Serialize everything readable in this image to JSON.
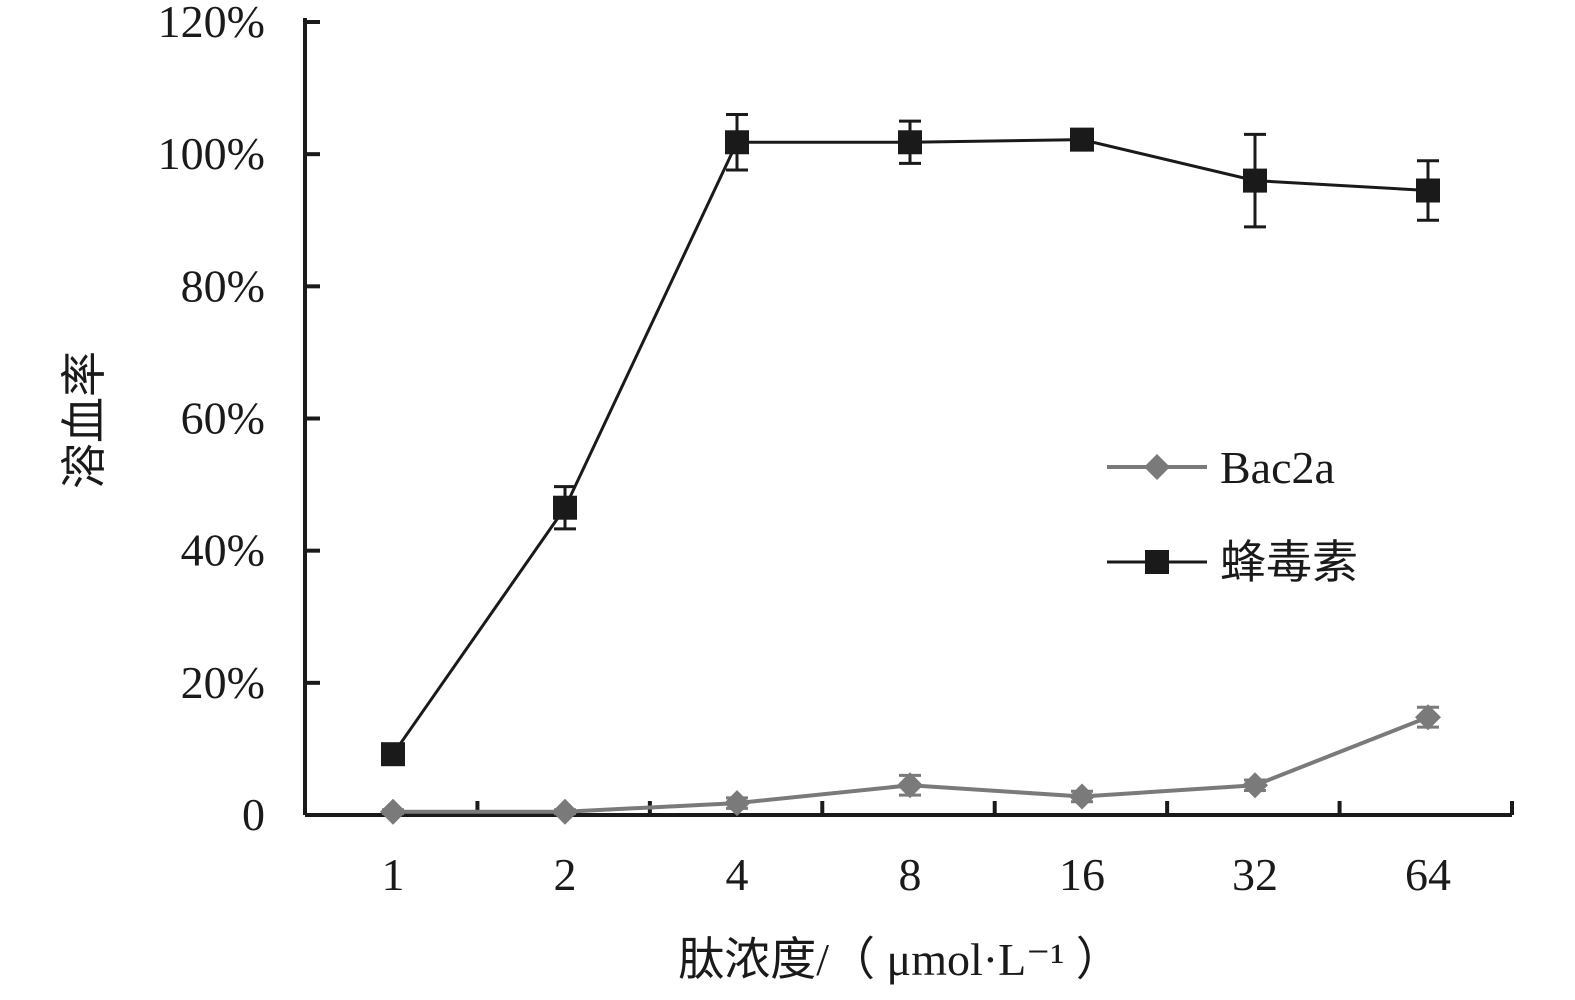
{
  "chart_data": {
    "type": "line",
    "title": "",
    "xlabel": "肽浓度/（ μmol·L⁻¹ ）",
    "ylabel": "溶血率",
    "categories": [
      "1",
      "2",
      "4",
      "8",
      "16",
      "32",
      "64"
    ],
    "ylim": [
      0,
      120
    ],
    "yticks": [
      0,
      20,
      40,
      60,
      80,
      100,
      120
    ],
    "ytick_labels": [
      "0",
      "20%",
      "40%",
      "60%",
      "80%",
      "100%",
      "120%"
    ],
    "grid": false,
    "legend_position": "right",
    "series": [
      {
        "name": "Bac2a",
        "marker": "diamond",
        "color": "#7a7a7a",
        "values": [
          0.5,
          0.5,
          1.8,
          4.5,
          2.8,
          4.5,
          14.8
        ],
        "errors": [
          0.3,
          0.3,
          0.8,
          1.5,
          0.8,
          0.8,
          1.5
        ]
      },
      {
        "name": "蜂毒素",
        "marker": "square",
        "color": "#1a1a1a",
        "values": [
          9.2,
          46.5,
          101.8,
          101.8,
          102.2,
          96.0,
          94.5
        ],
        "errors": [
          0,
          3.2,
          4.2,
          3.2,
          1.5,
          7.0,
          4.5
        ]
      }
    ]
  }
}
